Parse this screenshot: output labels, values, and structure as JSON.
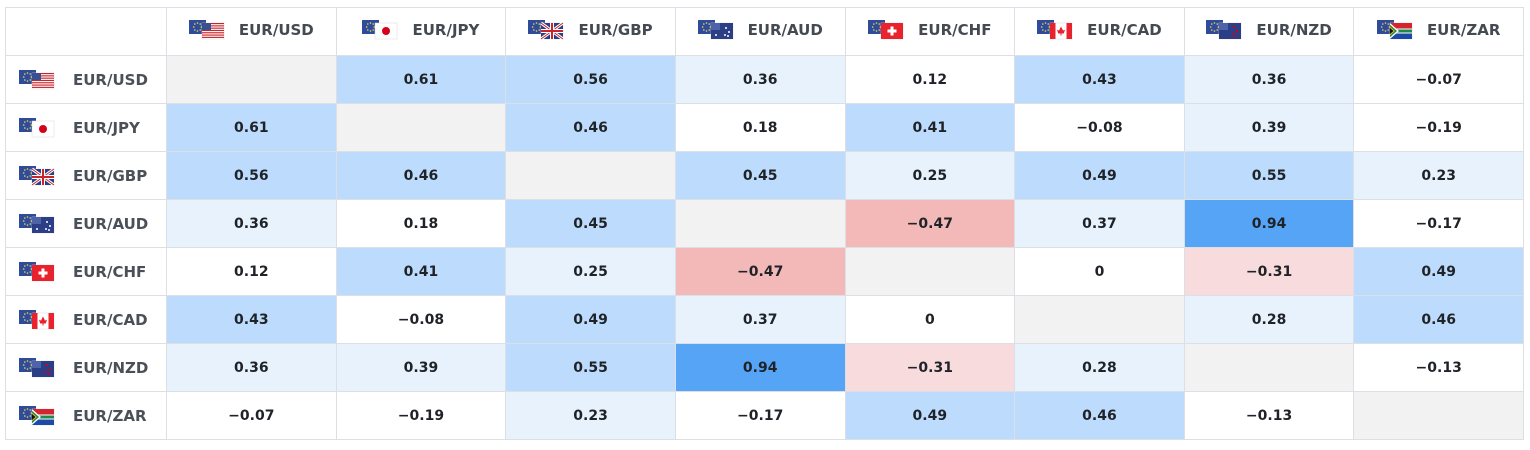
{
  "pairs": [
    {
      "label": "EUR/USD",
      "flag": "us-flag-icon"
    },
    {
      "label": "EUR/JPY",
      "flag": "jp-flag-icon"
    },
    {
      "label": "EUR/GBP",
      "flag": "gb-flag-icon"
    },
    {
      "label": "EUR/AUD",
      "flag": "au-flag-icon"
    },
    {
      "label": "EUR/CHF",
      "flag": "ch-flag-icon"
    },
    {
      "label": "EUR/CAD",
      "flag": "ca-flag-icon"
    },
    {
      "label": "EUR/NZD",
      "flag": "nz-flag-icon"
    },
    {
      "label": "EUR/ZAR",
      "flag": "za-flag-icon"
    }
  ],
  "colors": {
    "diagonal": "#f2f2f2",
    "neutral": "#ffffff",
    "pos_light": "#e8f2fd",
    "pos_medium": "#bddcfd",
    "pos_strong": "#55a4f6",
    "neg_light": "#f8dcdd",
    "neg_medium": "#f3b8b8"
  },
  "chart_data": {
    "type": "heatmap",
    "categories": [
      "EUR/USD",
      "EUR/JPY",
      "EUR/GBP",
      "EUR/AUD",
      "EUR/CHF",
      "EUR/CAD",
      "EUR/NZD",
      "EUR/ZAR"
    ],
    "values": [
      [
        null,
        0.61,
        0.56,
        0.36,
        0.12,
        0.43,
        0.36,
        -0.07
      ],
      [
        0.61,
        null,
        0.46,
        0.18,
        0.41,
        -0.08,
        0.39,
        -0.19
      ],
      [
        0.56,
        0.46,
        null,
        0.45,
        0.25,
        0.49,
        0.55,
        0.23
      ],
      [
        0.36,
        0.18,
        0.45,
        null,
        -0.47,
        0.37,
        0.94,
        -0.17
      ],
      [
        0.12,
        0.41,
        0.25,
        -0.47,
        null,
        0,
        -0.31,
        0.49
      ],
      [
        0.43,
        -0.08,
        0.49,
        0.37,
        0,
        null,
        0.28,
        0.46
      ],
      [
        0.36,
        0.39,
        0.55,
        0.94,
        -0.31,
        0.28,
        null,
        -0.13
      ],
      [
        -0.07,
        -0.19,
        0.23,
        -0.17,
        0.49,
        0.46,
        -0.13,
        null
      ]
    ],
    "display": [
      [
        "",
        "0.61",
        "0.56",
        "0.36",
        "0.12",
        "0.43",
        "0.36",
        "−0.07"
      ],
      [
        "0.61",
        "",
        "0.46",
        "0.18",
        "0.41",
        "−0.08",
        "0.39",
        "−0.19"
      ],
      [
        "0.56",
        "0.46",
        "",
        "0.45",
        "0.25",
        "0.49",
        "0.55",
        "0.23"
      ],
      [
        "0.36",
        "0.18",
        "0.45",
        "",
        "−0.47",
        "0.37",
        "0.94",
        "−0.17"
      ],
      [
        "0.12",
        "0.41",
        "0.25",
        "−0.47",
        "",
        "0",
        "−0.31",
        "0.49"
      ],
      [
        "0.43",
        "−0.08",
        "0.49",
        "0.37",
        "0",
        "",
        "0.28",
        "0.46"
      ],
      [
        "0.36",
        "0.39",
        "0.55",
        "0.94",
        "−0.31",
        "0.28",
        "",
        "−0.13"
      ],
      [
        "−0.07",
        "−0.19",
        "0.23",
        "−0.17",
        "0.49",
        "0.46",
        "−0.13",
        ""
      ]
    ]
  }
}
